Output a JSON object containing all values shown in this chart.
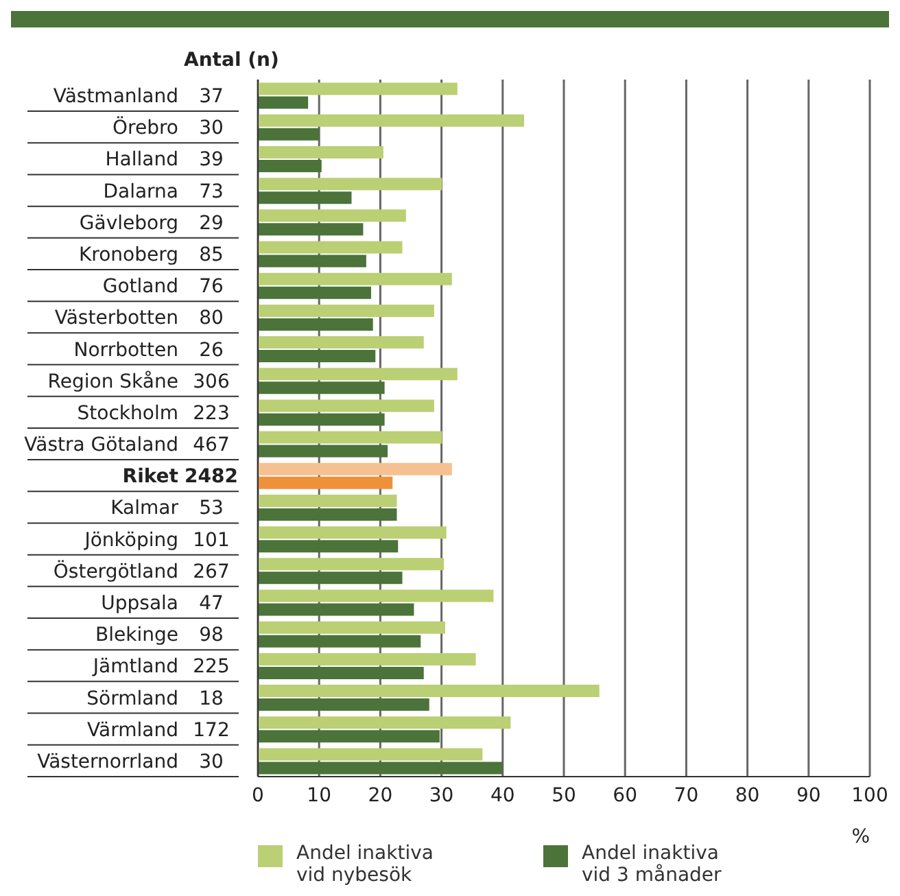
{
  "chart_data": {
    "type": "bar",
    "orientation": "horizontal",
    "xlabel": "%",
    "y2label": "Antal (n)",
    "categories": [
      "Västmanland",
      "Örebro",
      "Halland",
      "Dalarna",
      "Gävleborg",
      "Kronoberg",
      "Gotland",
      "Västerbotten",
      "Norrbotten",
      "Region Skåne",
      "Stockholm",
      "Västra Götaland",
      "Riket",
      "Kalmar",
      "Jönköping",
      "Östergötland",
      "Uppsala",
      "Blekinge",
      "Jämtland",
      "Sörmland",
      "Värmland",
      "Västernorrland"
    ],
    "y2_categories": [
      "37",
      "30",
      "39",
      "73",
      "29",
      "85",
      "76",
      "80",
      "26",
      "306",
      "223",
      "467",
      "2482",
      "53",
      "101",
      "267",
      "47",
      "98",
      "225",
      "18",
      "172",
      "30"
    ],
    "series": [
      {
        "name": "Andel inaktiva vid nybesök",
        "color": "#bbcf74",
        "colors": [
          "#bbcf74",
          "#bbcf74",
          "#bbcf74",
          "#bbcf74",
          "#bbcf74",
          "#bbcf74",
          "#bbcf74",
          "#bbcf74",
          "#bbcf74",
          "#bbcf74",
          "#bbcf74",
          "#bbcf74",
          "#f6c190",
          "#bbcf74",
          "#bbcf74",
          "#bbcf74",
          "#bbcf74",
          "#bbcf74",
          "#bbcf74",
          "#bbcf74",
          "#bbcf74",
          "#bbcf74"
        ],
        "values": [
          32.6,
          43.5,
          20.5,
          30.1,
          24.2,
          23.6,
          31.7,
          28.8,
          27.1,
          32.6,
          28.8,
          30.1,
          31.7,
          22.7,
          30.8,
          30.4,
          38.5,
          30.6,
          35.6,
          55.8,
          41.3,
          36.7
        ]
      },
      {
        "name": "Andel inaktiva vid 3 månader",
        "color": "#4b733a",
        "colors": [
          "#4b733a",
          "#4b733a",
          "#4b733a",
          "#4b733a",
          "#4b733a",
          "#4b733a",
          "#4b733a",
          "#4b733a",
          "#4b733a",
          "#4b733a",
          "#4b733a",
          "#4b733a",
          "#ee913a",
          "#4b733a",
          "#4b733a",
          "#4b733a",
          "#4b733a",
          "#4b733a",
          "#4b733a",
          "#4b733a",
          "#4b733a",
          "#4b733a"
        ],
        "values": [
          8.2,
          10.0,
          10.4,
          15.3,
          17.2,
          17.7,
          18.5,
          18.8,
          19.2,
          20.7,
          20.7,
          21.2,
          22.0,
          22.7,
          22.9,
          23.6,
          25.5,
          26.6,
          27.1,
          28.0,
          29.7,
          40.0
        ]
      }
    ],
    "xlim": [
      0,
      100
    ],
    "xticks": [
      0,
      10,
      20,
      30,
      40,
      50,
      60,
      70,
      80,
      90,
      100
    ],
    "grid": "x",
    "legend": "bottom"
  }
}
